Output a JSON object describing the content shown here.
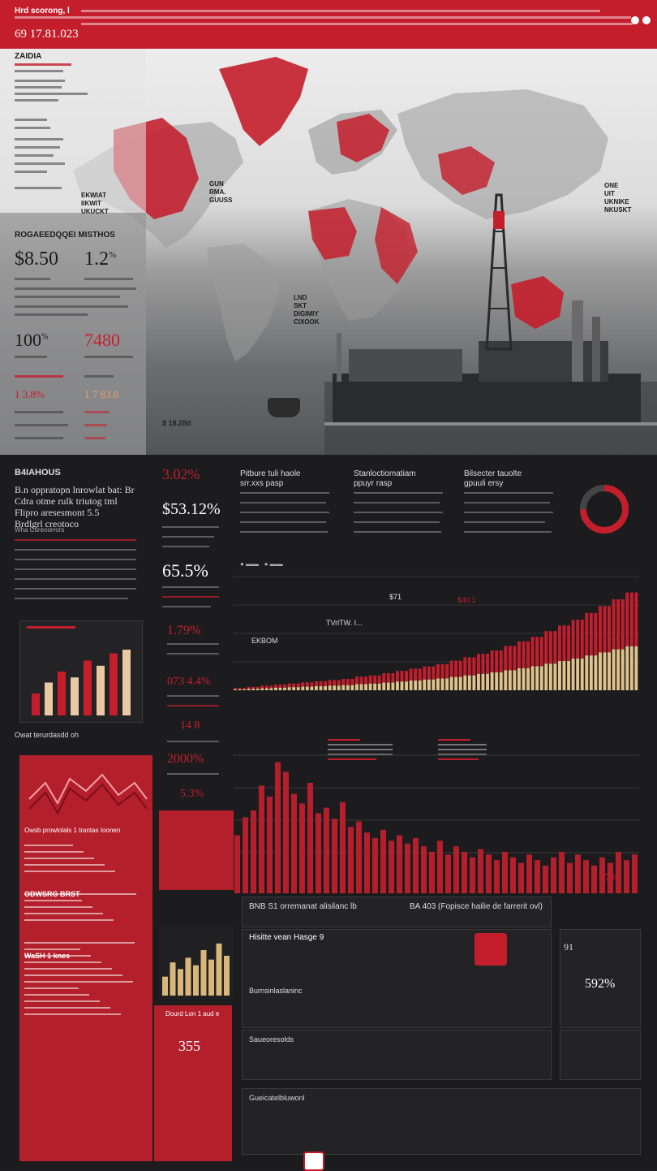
{
  "header": {
    "top_label": "Hrd scorong, l",
    "title": "69 17.81.023"
  },
  "map": {
    "left_label": "ZAIDIA",
    "panel_title": "ROGAEEDQQEI MISTHOS",
    "region_labels": [
      "EKWIAT\nIIKWIT\nUKUCKT",
      "GUN\nRMA.\nGUUSS",
      "ONE\nUIT\nUKNIKE\nNKUSKT",
      "LND\nSKT\nDIGIMIY\nCIXOOK"
    ],
    "stat1": "$8.50",
    "stat2": "1.2",
    "stat2_sup": "%",
    "stat3": "100",
    "stat3_sup": "%",
    "stat4": "7480",
    "stat5": "1 3.8%",
    "stat6": "1 7 83.8",
    "small_label": "$ 18.28d"
  },
  "dark_section": {
    "left_heading": "B4IAHOUS",
    "left_text": "B.n oppratopn lnrowlat bat: Br\nCdra otme rulk triutog tml\nFlipro aresesmont 5.5\nBrdlgrl creotoco",
    "left_sub": "Wha Cureoorrors",
    "stat_a": "3.02%",
    "stat_b": "$53.12%",
    "stat_c": "65.5%",
    "stat_d": "1.79%",
    "stat_e": "073 4.4%",
    "stat_f": "14 8",
    "stat_g": "2000%",
    "stat_h": "5.3%",
    "col_titles": [
      "Pitbure tuli haole\nsrr.xxs pasp",
      "Stanloctiomatiam\nppuyr rasp",
      "Bilsecter tauolte\ngpuuli ersy"
    ],
    "area_label": "TVrlTW. I...",
    "area_label2": "$71",
    "area_label3": "EKBOM",
    "area_label4": "$40.1",
    "bar_label_end": "67%",
    "left_box_title": "Owat terurdasdd oh",
    "left_box_sub": "Owsb prowlolals 1 trantas Ioonen",
    "left_box_sub2": "ODWSRG BRST",
    "left_box_sub3": "WaSH 1 knes",
    "mid_box_title": "Dourd Lon 1 aud e",
    "mid_box_value": "355",
    "bottom_title1": "BNB S1 orremanat alisilanc lb",
    "bottom_title2": "BA 403 (Fopisce hailie de farrerit ovl)",
    "bottom_sub1": "Hisitte vean Hasge 9",
    "bottom_sub2": "Burnsinlaslaninc",
    "bottom_sub3": "Saueoresolds",
    "bottom_sub4": "Gueicatelbluwonl",
    "bottom_stat": "592%",
    "bottom_stat2": "91"
  },
  "chart_data": [
    {
      "type": "area",
      "title": "",
      "series": [
        {
          "values": [
            2,
            3,
            4,
            5,
            6,
            7,
            8,
            9,
            10,
            12,
            13,
            15,
            17,
            19,
            21,
            23,
            26,
            29,
            32,
            35,
            39,
            43,
            47,
            52,
            57,
            62,
            68,
            74,
            80,
            86
          ]
        }
      ]
    },
    {
      "type": "bar",
      "title": "",
      "values": [
        42,
        55,
        60,
        78,
        70,
        95,
        88,
        72,
        65,
        80,
        58,
        62,
        54,
        66,
        48,
        52,
        44,
        40,
        46,
        38,
        42,
        36,
        40,
        34,
        30,
        38,
        28,
        34,
        30,
        26,
        32,
        28,
        24,
        30,
        26,
        22,
        28,
        24,
        20,
        26,
        30,
        22,
        28,
        24,
        20,
        26,
        22,
        30,
        24,
        28
      ]
    },
    {
      "type": "bar",
      "title": "",
      "values": [
        30,
        45,
        60,
        52,
        75,
        68,
        85,
        90
      ]
    },
    {
      "type": "bar",
      "title": "",
      "values": [
        20,
        35,
        28,
        40,
        32,
        48,
        38,
        55,
        42
      ]
    }
  ]
}
